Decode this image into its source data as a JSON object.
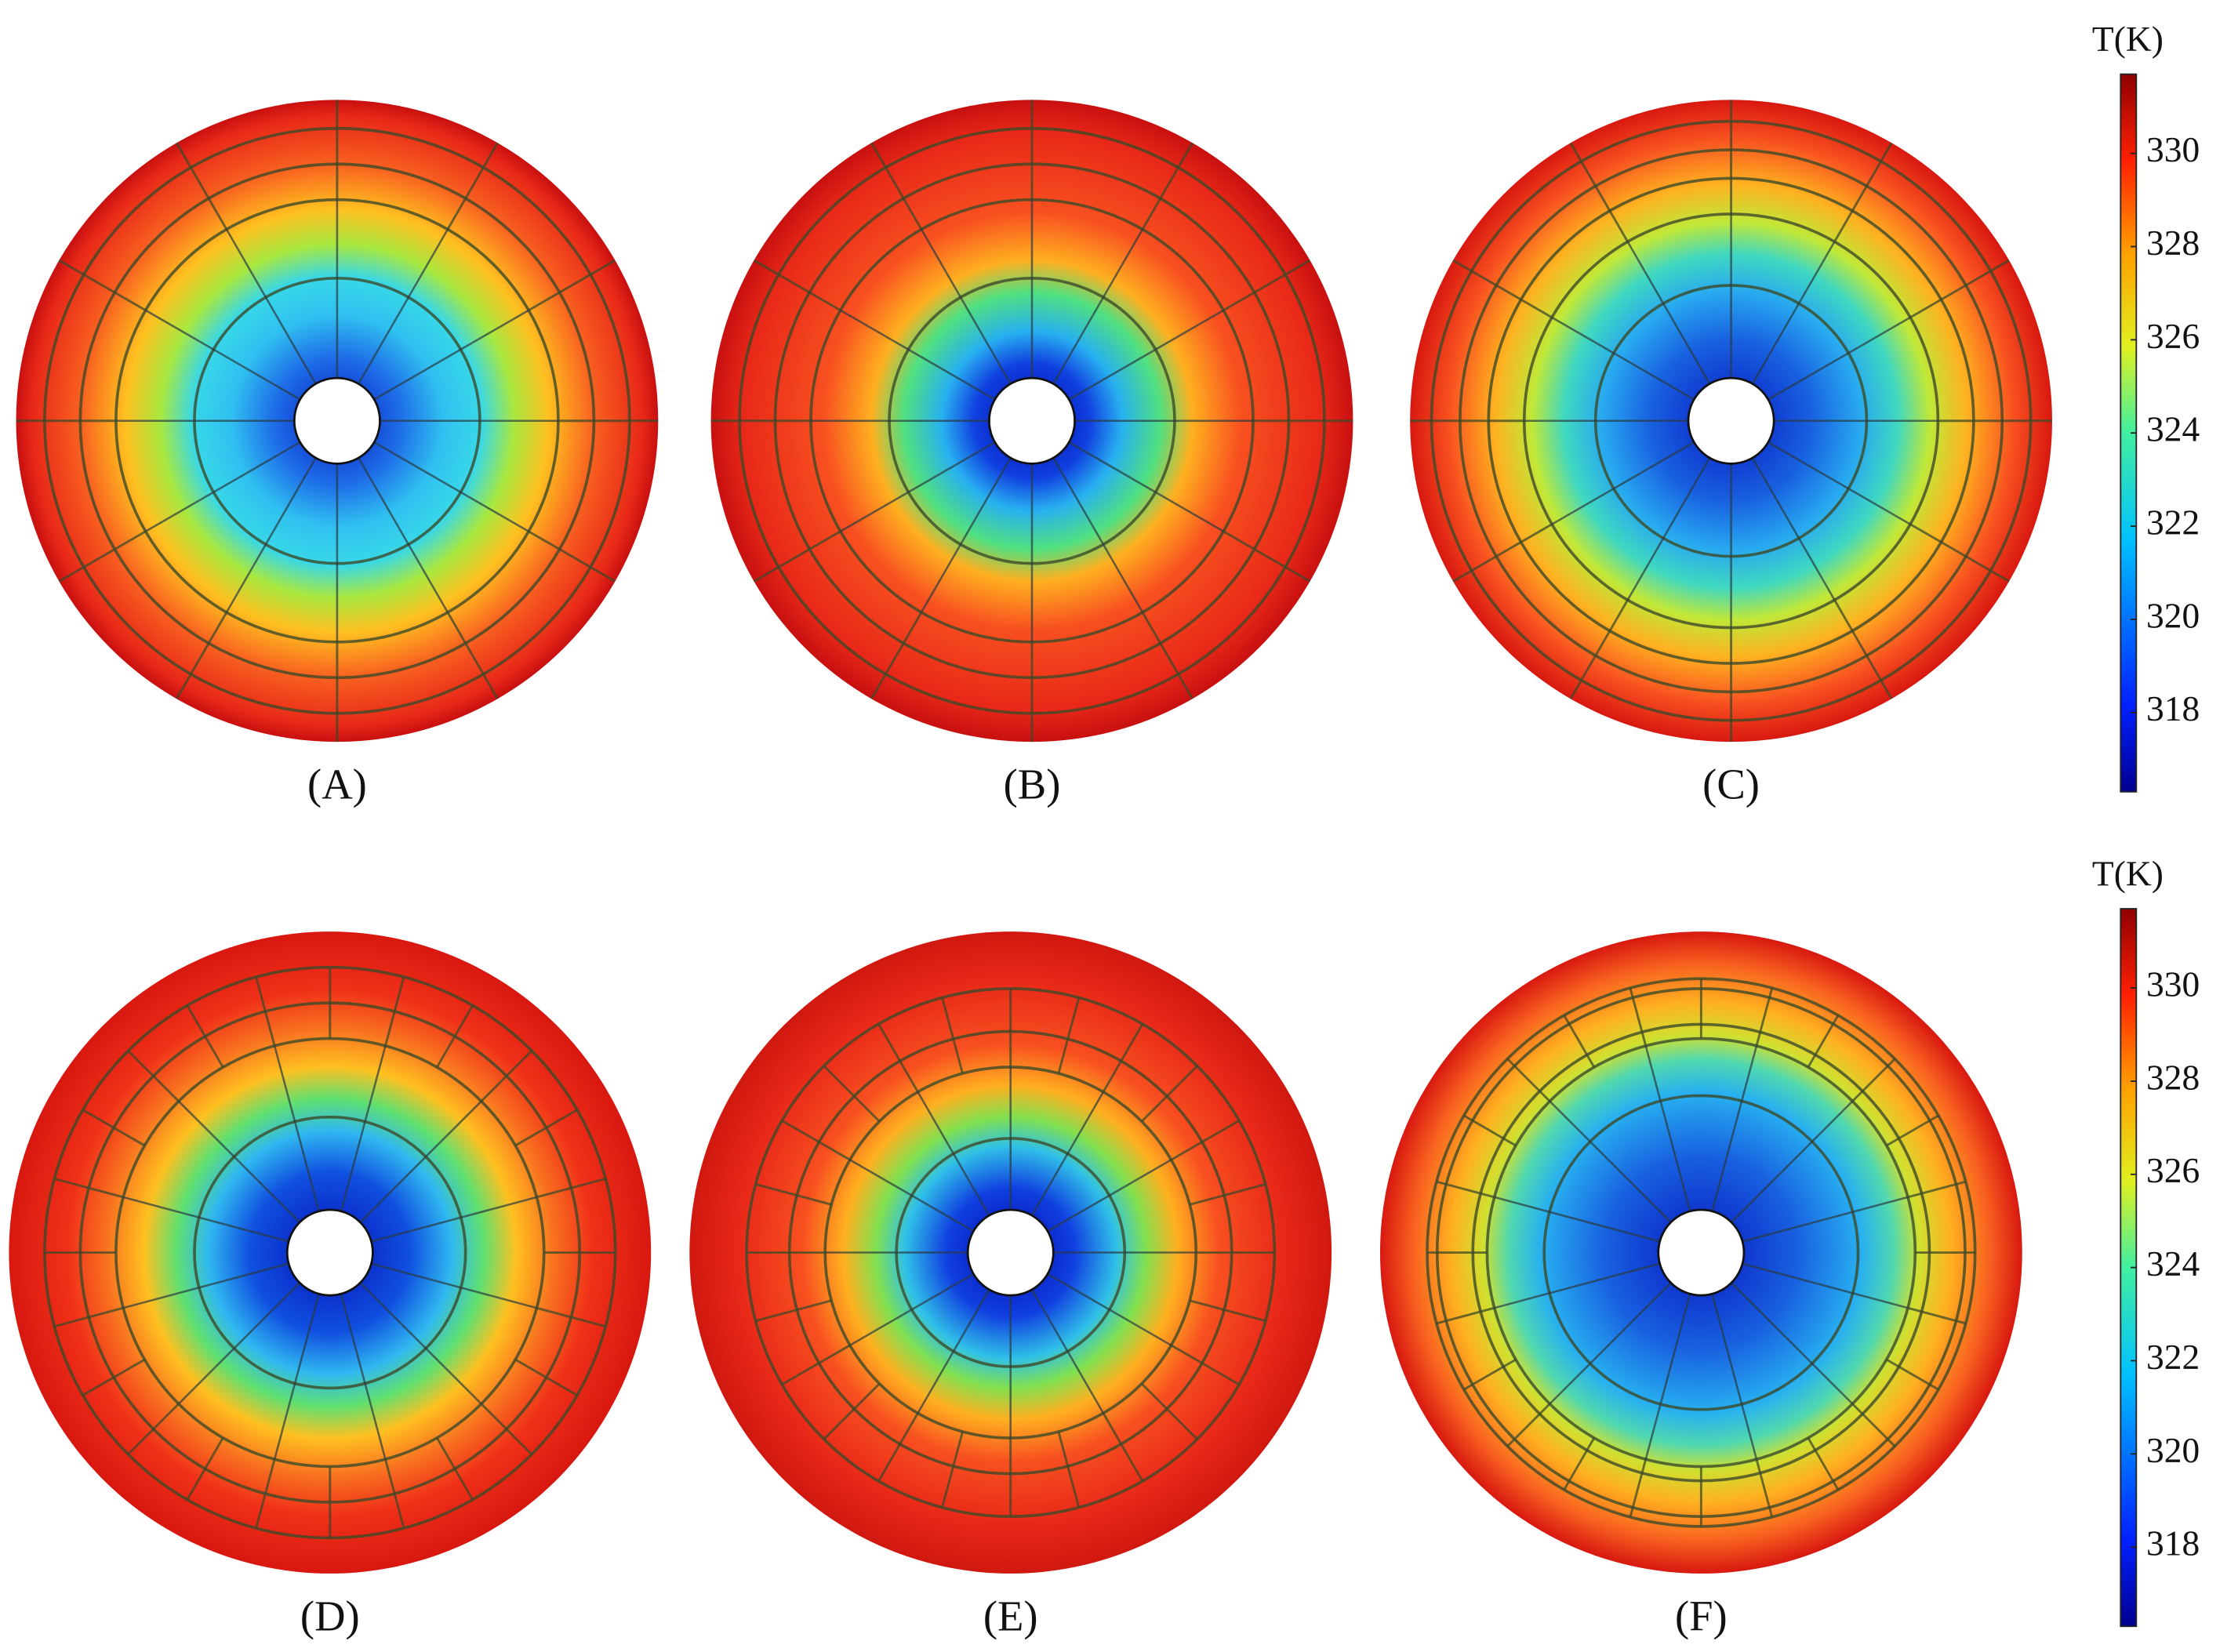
{
  "panels": [
    "(A)",
    "(B)",
    "(C)",
    "(D)",
    "(E)",
    "(F)"
  ],
  "colorbars": [
    {
      "title": "T(K)",
      "lim": [
        316.3,
        331.7
      ],
      "ticks": [
        318,
        320,
        322,
        324,
        326,
        328,
        330
      ]
    },
    {
      "title": "T(K)",
      "lim": [
        316.3,
        331.7
      ],
      "ticks": [
        318,
        320,
        322,
        324,
        326,
        328,
        330
      ]
    }
  ]
}
